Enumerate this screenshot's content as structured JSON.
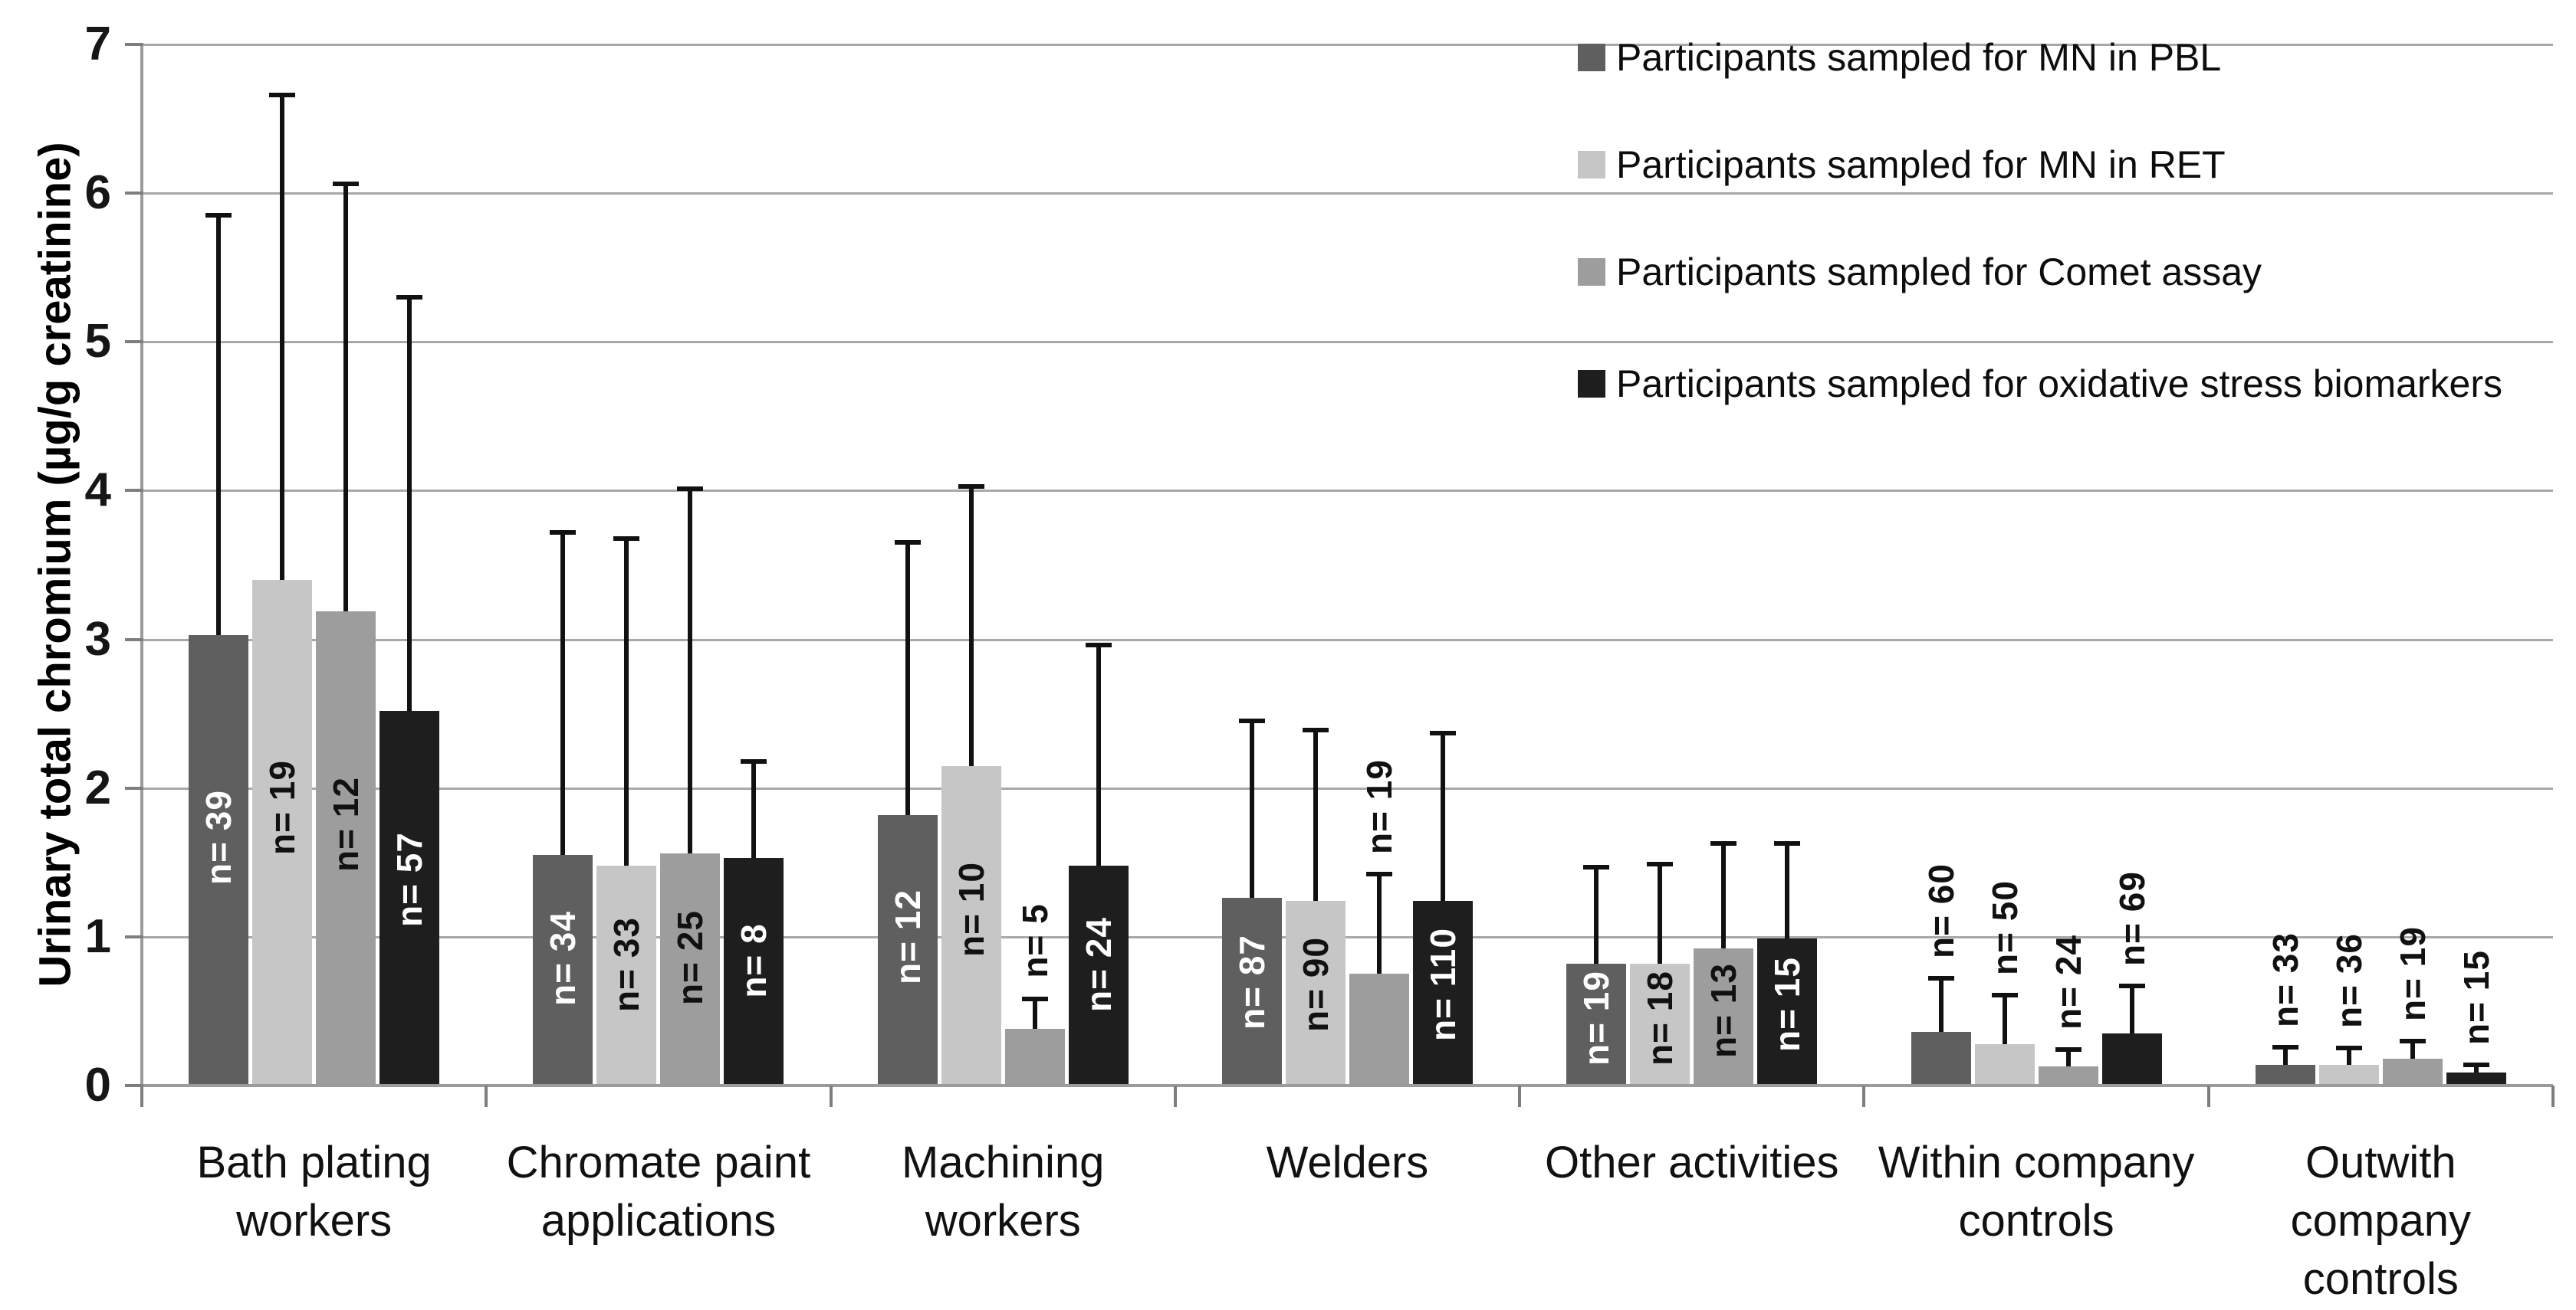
{
  "chart_data": {
    "type": "bar",
    "title": "",
    "xlabel": "",
    "ylabel": "Urinary total chromium (µg/g creatinine)",
    "ylim": [
      0,
      7
    ],
    "yticks": [
      "0",
      "1",
      "2",
      "3",
      "4",
      "5",
      "6",
      "7"
    ],
    "grid": true,
    "legend_position": "top-right",
    "error_bars": "upper SD whisker with top cap",
    "bar_label_prefix": "n= ",
    "categories": [
      "Bath plating workers",
      "Chromate paint applications",
      "Machining workers",
      "Welders",
      "Other activities",
      "Within company controls",
      "Outwith company controls"
    ],
    "category_label_lines": [
      [
        "Bath plating",
        "workers"
      ],
      [
        "Chromate paint",
        "applications"
      ],
      [
        "Machining",
        "workers"
      ],
      [
        "Welders"
      ],
      [
        "Other activities"
      ],
      [
        "Within company",
        "controls"
      ],
      [
        "Outwith",
        "company",
        "controls"
      ]
    ],
    "series": [
      {
        "name": "Participants sampled for MN in PBL",
        "color": "#5f5f5f",
        "inside_label_color": "#ffffff",
        "values": [
          3.03,
          1.55,
          1.82,
          1.26,
          0.82,
          0.36,
          0.14
        ],
        "error_top": [
          5.85,
          3.72,
          3.65,
          2.45,
          1.47,
          0.72,
          0.26
        ],
        "n": [
          39,
          34,
          12,
          87,
          19,
          60,
          33
        ],
        "label_inside": [
          true,
          true,
          true,
          true,
          true,
          false,
          false
        ]
      },
      {
        "name": "Participants sampled for MN in RET",
        "color": "#c6c6c6",
        "inside_label_color": "#111111",
        "values": [
          3.4,
          1.48,
          2.15,
          1.24,
          0.82,
          0.28,
          0.14
        ],
        "error_top": [
          6.66,
          3.68,
          4.03,
          2.39,
          1.49,
          0.61,
          0.25
        ],
        "n": [
          19,
          33,
          10,
          90,
          18,
          50,
          36
        ],
        "label_inside": [
          true,
          true,
          true,
          true,
          true,
          false,
          false
        ]
      },
      {
        "name": "Participants sampled for Comet assay",
        "color": "#9d9d9d",
        "inside_label_color": "#111111",
        "values": [
          3.19,
          1.56,
          0.38,
          0.75,
          0.92,
          0.13,
          0.18
        ],
        "error_top": [
          6.06,
          4.01,
          0.58,
          1.42,
          1.63,
          0.24,
          0.3
        ],
        "n": [
          12,
          25,
          5,
          19,
          13,
          24,
          19
        ],
        "label_inside": [
          true,
          true,
          false,
          false,
          true,
          false,
          false
        ]
      },
      {
        "name": "Participants sampled for oxidative stress biomarkers",
        "color": "#1e1e1e",
        "inside_label_color": "#ffffff",
        "values": [
          2.52,
          1.53,
          1.48,
          1.24,
          0.99,
          0.35,
          0.09
        ],
        "error_top": [
          5.3,
          2.18,
          2.96,
          2.37,
          1.63,
          0.67,
          0.14
        ],
        "n": [
          57,
          8,
          24,
          110,
          15,
          69,
          15
        ],
        "label_inside": [
          true,
          true,
          true,
          true,
          true,
          false,
          false
        ]
      }
    ]
  }
}
